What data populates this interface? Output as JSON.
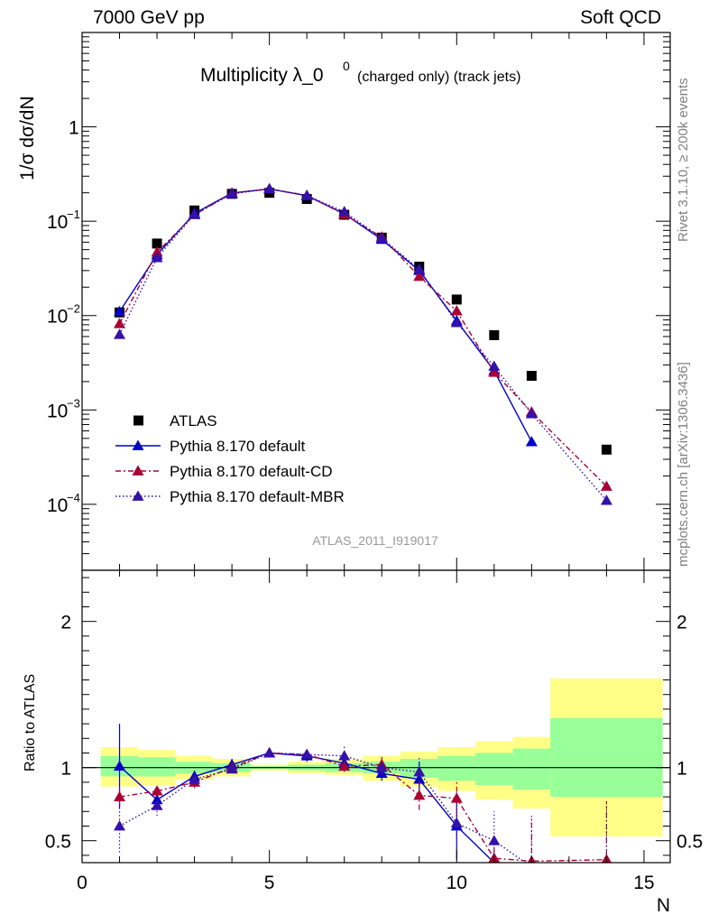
{
  "header": {
    "energy_label": "7000 GeV pp",
    "process_label": "Soft QCD"
  },
  "side_labels": {
    "rivet": "Rivet 3.1.10, ≥ 200k events",
    "reference": "mcplots.cern.ch [arXiv:1306.3436]"
  },
  "chart_data": [
    {
      "type": "scatter",
      "panel": "main",
      "title": "Multiplicity λ_0",
      "title_superscript": "0",
      "title_suffix": "(charged only) (track jets)",
      "ylabel": "1/σ dσ/dN",
      "xlabel": "",
      "yscale": "log",
      "ylim": [
        2e-05,
        10
      ],
      "xlim": [
        0,
        15.7
      ],
      "yticks": [
        {
          "value": 1,
          "label": "1"
        },
        {
          "value": 0.1,
          "label": "10",
          "sup": "−1"
        },
        {
          "value": 0.01,
          "label": "10",
          "sup": "−2"
        },
        {
          "value": 0.001,
          "label": "10",
          "sup": "−3"
        },
        {
          "value": 0.0001,
          "label": "10",
          "sup": "−4"
        }
      ],
      "watermark": "ATLAS_2011_I919017",
      "legend_position": "lower-left",
      "series": [
        {
          "name": "ATLAS",
          "color": "#000000",
          "marker": "square",
          "x": [
            1,
            2,
            3,
            4,
            5,
            6,
            7,
            8,
            9,
            10,
            11,
            12,
            14
          ],
          "y": [
            0.0108,
            0.058,
            0.13,
            0.195,
            0.2,
            0.172,
            0.117,
            0.067,
            0.033,
            0.0148,
            0.0062,
            0.0023,
            0.00038
          ]
        },
        {
          "name": "Pythia 8.170 default",
          "color": "#0000cc",
          "marker": "triangle",
          "line": "solid",
          "x": [
            1,
            2,
            3,
            4,
            5,
            6,
            7,
            8,
            9,
            10,
            11,
            12
          ],
          "y": [
            0.011,
            0.044,
            0.121,
            0.199,
            0.22,
            0.186,
            0.12,
            0.064,
            0.03,
            0.0088,
            0.0026,
            0.00046
          ]
        },
        {
          "name": "Pythia 8.170 default-CD",
          "color": "#aa0033",
          "marker": "triangle",
          "line": "dashdot",
          "x": [
            1,
            2,
            3,
            4,
            5,
            6,
            7,
            8,
            9,
            10,
            11,
            12,
            14
          ],
          "y": [
            0.0082,
            0.047,
            0.117,
            0.198,
            0.22,
            0.188,
            0.118,
            0.068,
            0.026,
            0.0112,
            0.0025,
            0.00095,
            0.000155
          ]
        },
        {
          "name": "Pythia 8.170 default-MBR",
          "color": "#3311aa",
          "marker": "triangle",
          "line": "dotted",
          "x": [
            1,
            2,
            3,
            4,
            5,
            6,
            7,
            8,
            9,
            10,
            11,
            12,
            14
          ],
          "y": [
            0.0063,
            0.041,
            0.118,
            0.195,
            0.22,
            0.187,
            0.126,
            0.066,
            0.031,
            0.0084,
            0.0029,
            0.00091,
            0.00011
          ]
        }
      ]
    },
    {
      "type": "scatter",
      "panel": "ratio",
      "ylabel": "Ratio to ATLAS",
      "xlabel": "N",
      "ylim": [
        0.35,
        2.35
      ],
      "xlim": [
        0,
        15.7
      ],
      "yticks": [
        0.5,
        1,
        2
      ],
      "xticks": [
        0,
        5,
        10,
        15
      ],
      "bands": [
        {
          "x0": 0.5,
          "x1": 1.5,
          "yellow": [
            0.87,
            1.14
          ],
          "green": [
            0.94,
            1.08
          ]
        },
        {
          "x0": 1.5,
          "x1": 2.5,
          "yellow": [
            0.88,
            1.12
          ],
          "green": [
            0.94,
            1.07
          ]
        },
        {
          "x0": 2.5,
          "x1": 3.5,
          "yellow": [
            0.92,
            1.08
          ],
          "green": [
            0.96,
            1.04
          ]
        },
        {
          "x0": 3.5,
          "x1": 4.5,
          "yellow": [
            0.94,
            1.06
          ],
          "green": [
            0.97,
            1.03
          ]
        },
        {
          "x0": 4.5,
          "x1": 5.5,
          "yellow": [
            0.98,
            1.02
          ],
          "green": [
            0.99,
            1.01
          ]
        },
        {
          "x0": 5.5,
          "x1": 6.5,
          "yellow": [
            0.96,
            1.04
          ],
          "green": [
            0.98,
            1.02
          ]
        },
        {
          "x0": 6.5,
          "x1": 7.5,
          "yellow": [
            0.95,
            1.06
          ],
          "green": [
            0.97,
            1.03
          ]
        },
        {
          "x0": 7.5,
          "x1": 8.5,
          "yellow": [
            0.91,
            1.08
          ],
          "green": [
            0.96,
            1.04
          ]
        },
        {
          "x0": 8.5,
          "x1": 9.5,
          "yellow": [
            0.87,
            1.11
          ],
          "green": [
            0.93,
            1.06
          ]
        },
        {
          "x0": 9.5,
          "x1": 10.5,
          "yellow": [
            0.84,
            1.14
          ],
          "green": [
            0.91,
            1.08
          ]
        },
        {
          "x0": 10.5,
          "x1": 11.5,
          "yellow": [
            0.78,
            1.18
          ],
          "green": [
            0.88,
            1.1
          ]
        },
        {
          "x0": 11.5,
          "x1": 12.5,
          "yellow": [
            0.72,
            1.21
          ],
          "green": [
            0.85,
            1.13
          ]
        },
        {
          "x0": 12.5,
          "x1": 15.5,
          "yellow": [
            0.53,
            1.61
          ],
          "green": [
            0.8,
            1.34
          ]
        }
      ],
      "series": [
        {
          "name": "Pythia 8.170 default",
          "color": "#0000cc",
          "marker": "triangle",
          "line": "solid",
          "x": [
            1,
            2,
            3,
            4,
            5,
            6,
            7,
            8,
            9,
            10,
            11
          ],
          "y": [
            1.01,
            0.78,
            0.94,
            1.02,
            1.1,
            1.08,
            1.03,
            0.96,
            0.92,
            0.6,
            0.35
          ],
          "err": [
            0.29,
            0.05,
            0.04,
            0.04,
            0.03,
            0.04,
            0.04,
            0.05,
            0.12,
            0.23,
            0
          ]
        },
        {
          "name": "Pythia 8.170 default-CD",
          "color": "#aa0033",
          "marker": "triangle",
          "line": "dashdot",
          "x": [
            1,
            2,
            3,
            4,
            5,
            6,
            7,
            8,
            9,
            10,
            11,
            12,
            14
          ],
          "y": [
            0.8,
            0.84,
            0.9,
            1.0,
            1.1,
            1.09,
            1.01,
            1.02,
            0.81,
            0.79,
            0.38,
            0.36,
            0.37
          ],
          "err": [
            0.06,
            0.04,
            0.04,
            0.03,
            0.03,
            0.03,
            0.04,
            0.07,
            0.1,
            0.13,
            0.14,
            0.29,
            0.4
          ]
        },
        {
          "name": "Pythia 8.170 default-MBR",
          "color": "#3311aa",
          "marker": "triangle",
          "line": "dotted",
          "x": [
            1,
            2,
            3,
            4,
            5,
            6,
            7,
            8,
            9,
            10,
            11,
            12,
            14
          ],
          "y": [
            0.6,
            0.74,
            0.92,
            0.99,
            1.1,
            1.09,
            1.08,
            1.0,
            0.97,
            0.62,
            0.5,
            0.32,
            0.29
          ],
          "err": [
            0.18,
            0.07,
            0.04,
            0.03,
            0.03,
            0.03,
            0.07,
            0.04,
            0.11,
            0.1,
            0.2,
            0.35,
            0.45
          ]
        }
      ]
    }
  ]
}
